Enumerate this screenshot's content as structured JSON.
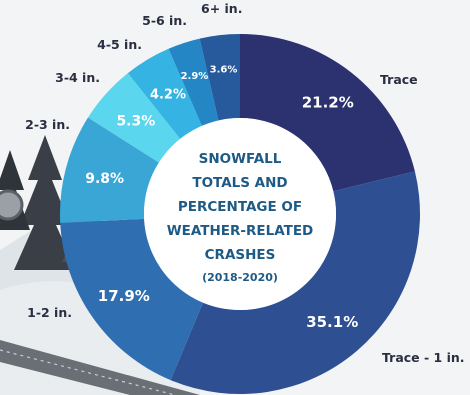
{
  "chart_data": {
    "type": "pie",
    "variant": "donut",
    "title_lines": [
      "SNOWFALL",
      "TOTALS AND",
      "PERCENTAGE OF",
      "WEATHER-RELATED",
      "CRASHES"
    ],
    "subtitle": "(2018-2020)",
    "slices": [
      {
        "category": "Trace",
        "value": 21.2,
        "label": "21.2%",
        "color": "#2c3170"
      },
      {
        "category": "Trace - 1 in.",
        "value": 35.1,
        "label": "35.1%",
        "color": "#2f4f93"
      },
      {
        "category": "1-2 in.",
        "value": 17.9,
        "label": "17.9%",
        "color": "#2f6fb1"
      },
      {
        "category": "2-3 in.",
        "value": 9.8,
        "label": "9.8%",
        "color": "#3aa6d6"
      },
      {
        "category": "3-4 in.",
        "value": 5.3,
        "label": "5.3%",
        "color": "#5ad7ee"
      },
      {
        "category": "4-5 in.",
        "value": 4.2,
        "label": "4.2%",
        "color": "#35b3e2"
      },
      {
        "category": "5-6 in.",
        "value": 2.9,
        "label": "2.9%",
        "color": "#2586c6"
      },
      {
        "category": "6+ in.",
        "value": 3.6,
        "label": "3.6%",
        "color": "#275a9c"
      }
    ]
  }
}
